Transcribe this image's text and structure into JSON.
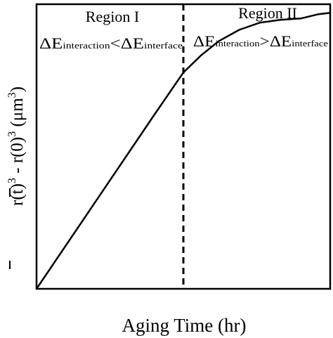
{
  "chart_data": {
    "type": "line",
    "title": "",
    "xlabel": "Aging Time (hr)",
    "ylabel": {
      "prefix": "r",
      "t": "(t)",
      "mid": " - r",
      "zero": "(0)",
      "unit_open": " (μm",
      "unit_close": ")",
      "sup": "3"
    },
    "xlim": [
      0,
      10
    ],
    "ylim": [
      0,
      10
    ],
    "grid": false,
    "boundary_x": 5,
    "regions": [
      {
        "label": "Region I",
        "e1": "ΔE",
        "sub1": "interaction",
        "op": "<",
        "e2": "ΔE",
        "sub2": "interface"
      },
      {
        "label": "Region II",
        "e1": "ΔE",
        "sub1": "interaction",
        "op": ">",
        "e2": "ΔE",
        "sub2": "interface"
      }
    ],
    "series": [
      {
        "x": [
          0,
          4.0,
          5.0,
          5.6,
          6.2,
          6.9,
          7.6,
          8.3,
          9.0,
          9.6,
          10.0
        ],
        "y": [
          0,
          6.1,
          7.6,
          8.2,
          8.7,
          9.1,
          9.35,
          9.45,
          9.5,
          9.65,
          9.7
        ]
      }
    ]
  }
}
